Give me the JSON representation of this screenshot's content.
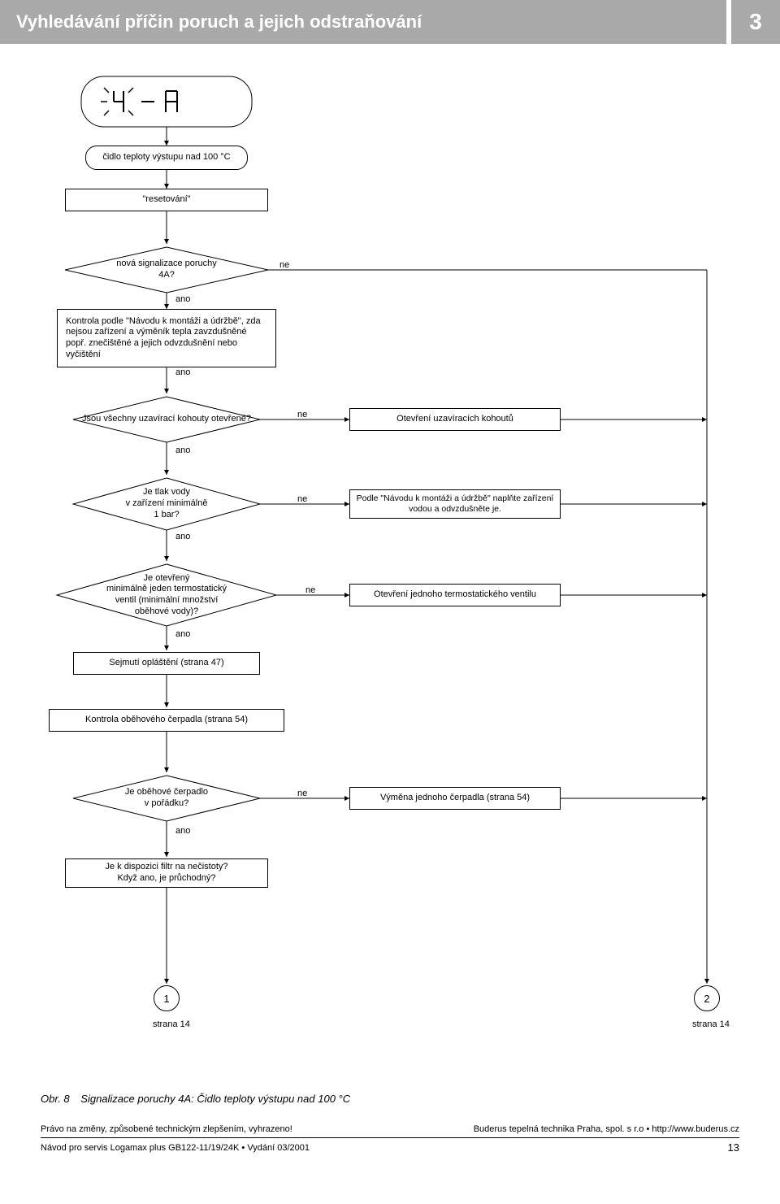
{
  "header": {
    "title": "Vyhledávání příčin poruch a jejich odstraňování",
    "section": "3"
  },
  "display_code": "4A",
  "labels": {
    "yes": "ano",
    "no": "ne"
  },
  "nodes": {
    "sensor": "čidlo teploty výstupu nad 100 °C",
    "reset": "\"resetování\"",
    "d_newfault": "nová signalizace poruchy\n4A?",
    "p_manual": "Kontrola podle \"Návodu k montáži a údržbě\", zda nejsou zařízení a výměník tepla zavzdušněné popř. znečištěné a jejich odvzdušnění nebo vyčištění",
    "d_valves_open": "Jsou všechny uzavírací kohouty otevřené?",
    "a_open_valves": "Otevření uzavíracích kohoutů",
    "d_pressure": "Je tlak vody\nv zařízení minimálně\n1 bar?",
    "a_refill": "Podle \"Návodu k montáži a údržbě\" naplňte zařízení vodou a odvzdušněte je.",
    "d_thermo": "Je otevřený\nminimálně jeden termostatický\nventil (minimální množství\noběhové vody)?",
    "a_open_thermo": "Otevření jednoho termostatického ventilu",
    "p_remove_casing": "Sejmutí opláštění (strana 47)",
    "p_check_pump": "Kontrola oběhového čerpadla (strana 54)",
    "d_pump_ok": "Je oběhové čerpadlo\nv pořádku?",
    "a_replace_pump": "Výměna jednoho čerpadla (strana 54)",
    "p_filter": "Je k dispozici filtr na nečistoty?\nKdyž ano, je průchodný?",
    "page_ref1": "strana 14",
    "page_ref2": "strana 14",
    "conn1": "1",
    "conn2": "2"
  },
  "caption": {
    "fig": "Obr. 8",
    "text": "Signalizace poruchy 4A: Čidlo teploty výstupu nad 100 °C"
  },
  "footer": {
    "left": "Právo na změny, způsobené technickým zlepšením, vyhrazeno!",
    "right": "Buderus tepelná technika Praha, spol. s r.o • http://www.buderus.cz",
    "bottom_left": "Návod pro servis Logamax plus GB122-11/19/24K • Vydání 03/2001",
    "page": "13"
  },
  "style": {
    "header_bg": "#a9a9a9",
    "header_fg": "#ffffff",
    "stroke": "#000000",
    "display_bg": "#ffffff"
  }
}
